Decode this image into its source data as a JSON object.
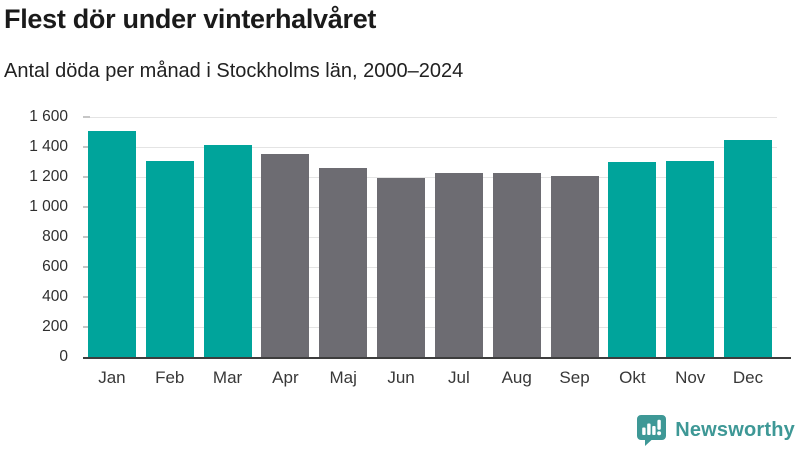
{
  "header": {
    "title": "Flest dör under vinterhalvåret",
    "subtitle": "Antal döda per månad i Stockholms län, 2000–2024"
  },
  "chart_data": {
    "type": "bar",
    "title": "Flest dör under vinterhalvåret",
    "subtitle": "Antal döda per månad i Stockholms län, 2000–2024",
    "categories": [
      "Jan",
      "Feb",
      "Mar",
      "Apr",
      "Maj",
      "Jun",
      "Jul",
      "Aug",
      "Sep",
      "Okt",
      "Nov",
      "Dec"
    ],
    "values": [
      1510,
      1310,
      1415,
      1355,
      1260,
      1195,
      1230,
      1225,
      1210,
      1300,
      1305,
      1450
    ],
    "seasons": [
      "winter",
      "winter",
      "winter",
      "summer",
      "summer",
      "summer",
      "summer",
      "summer",
      "summer",
      "winter",
      "winter",
      "winter"
    ],
    "palette": {
      "winter": "#00a49b",
      "summer": "#6d6c72"
    },
    "xlabel": "",
    "ylabel": "",
    "ylim": [
      0,
      1600
    ],
    "ytick_step": 200,
    "ytick_labels": [
      "0",
      "200",
      "400",
      "600",
      "800",
      "1 000",
      "1 200",
      "1 400",
      "1 600"
    ],
    "grid": true,
    "legend": false
  },
  "footer": {
    "brand": "Newsworthy",
    "brand_color": "#3e9896",
    "logo_icon": "newsworthy-speech-bubble-bar-chart-icon"
  }
}
